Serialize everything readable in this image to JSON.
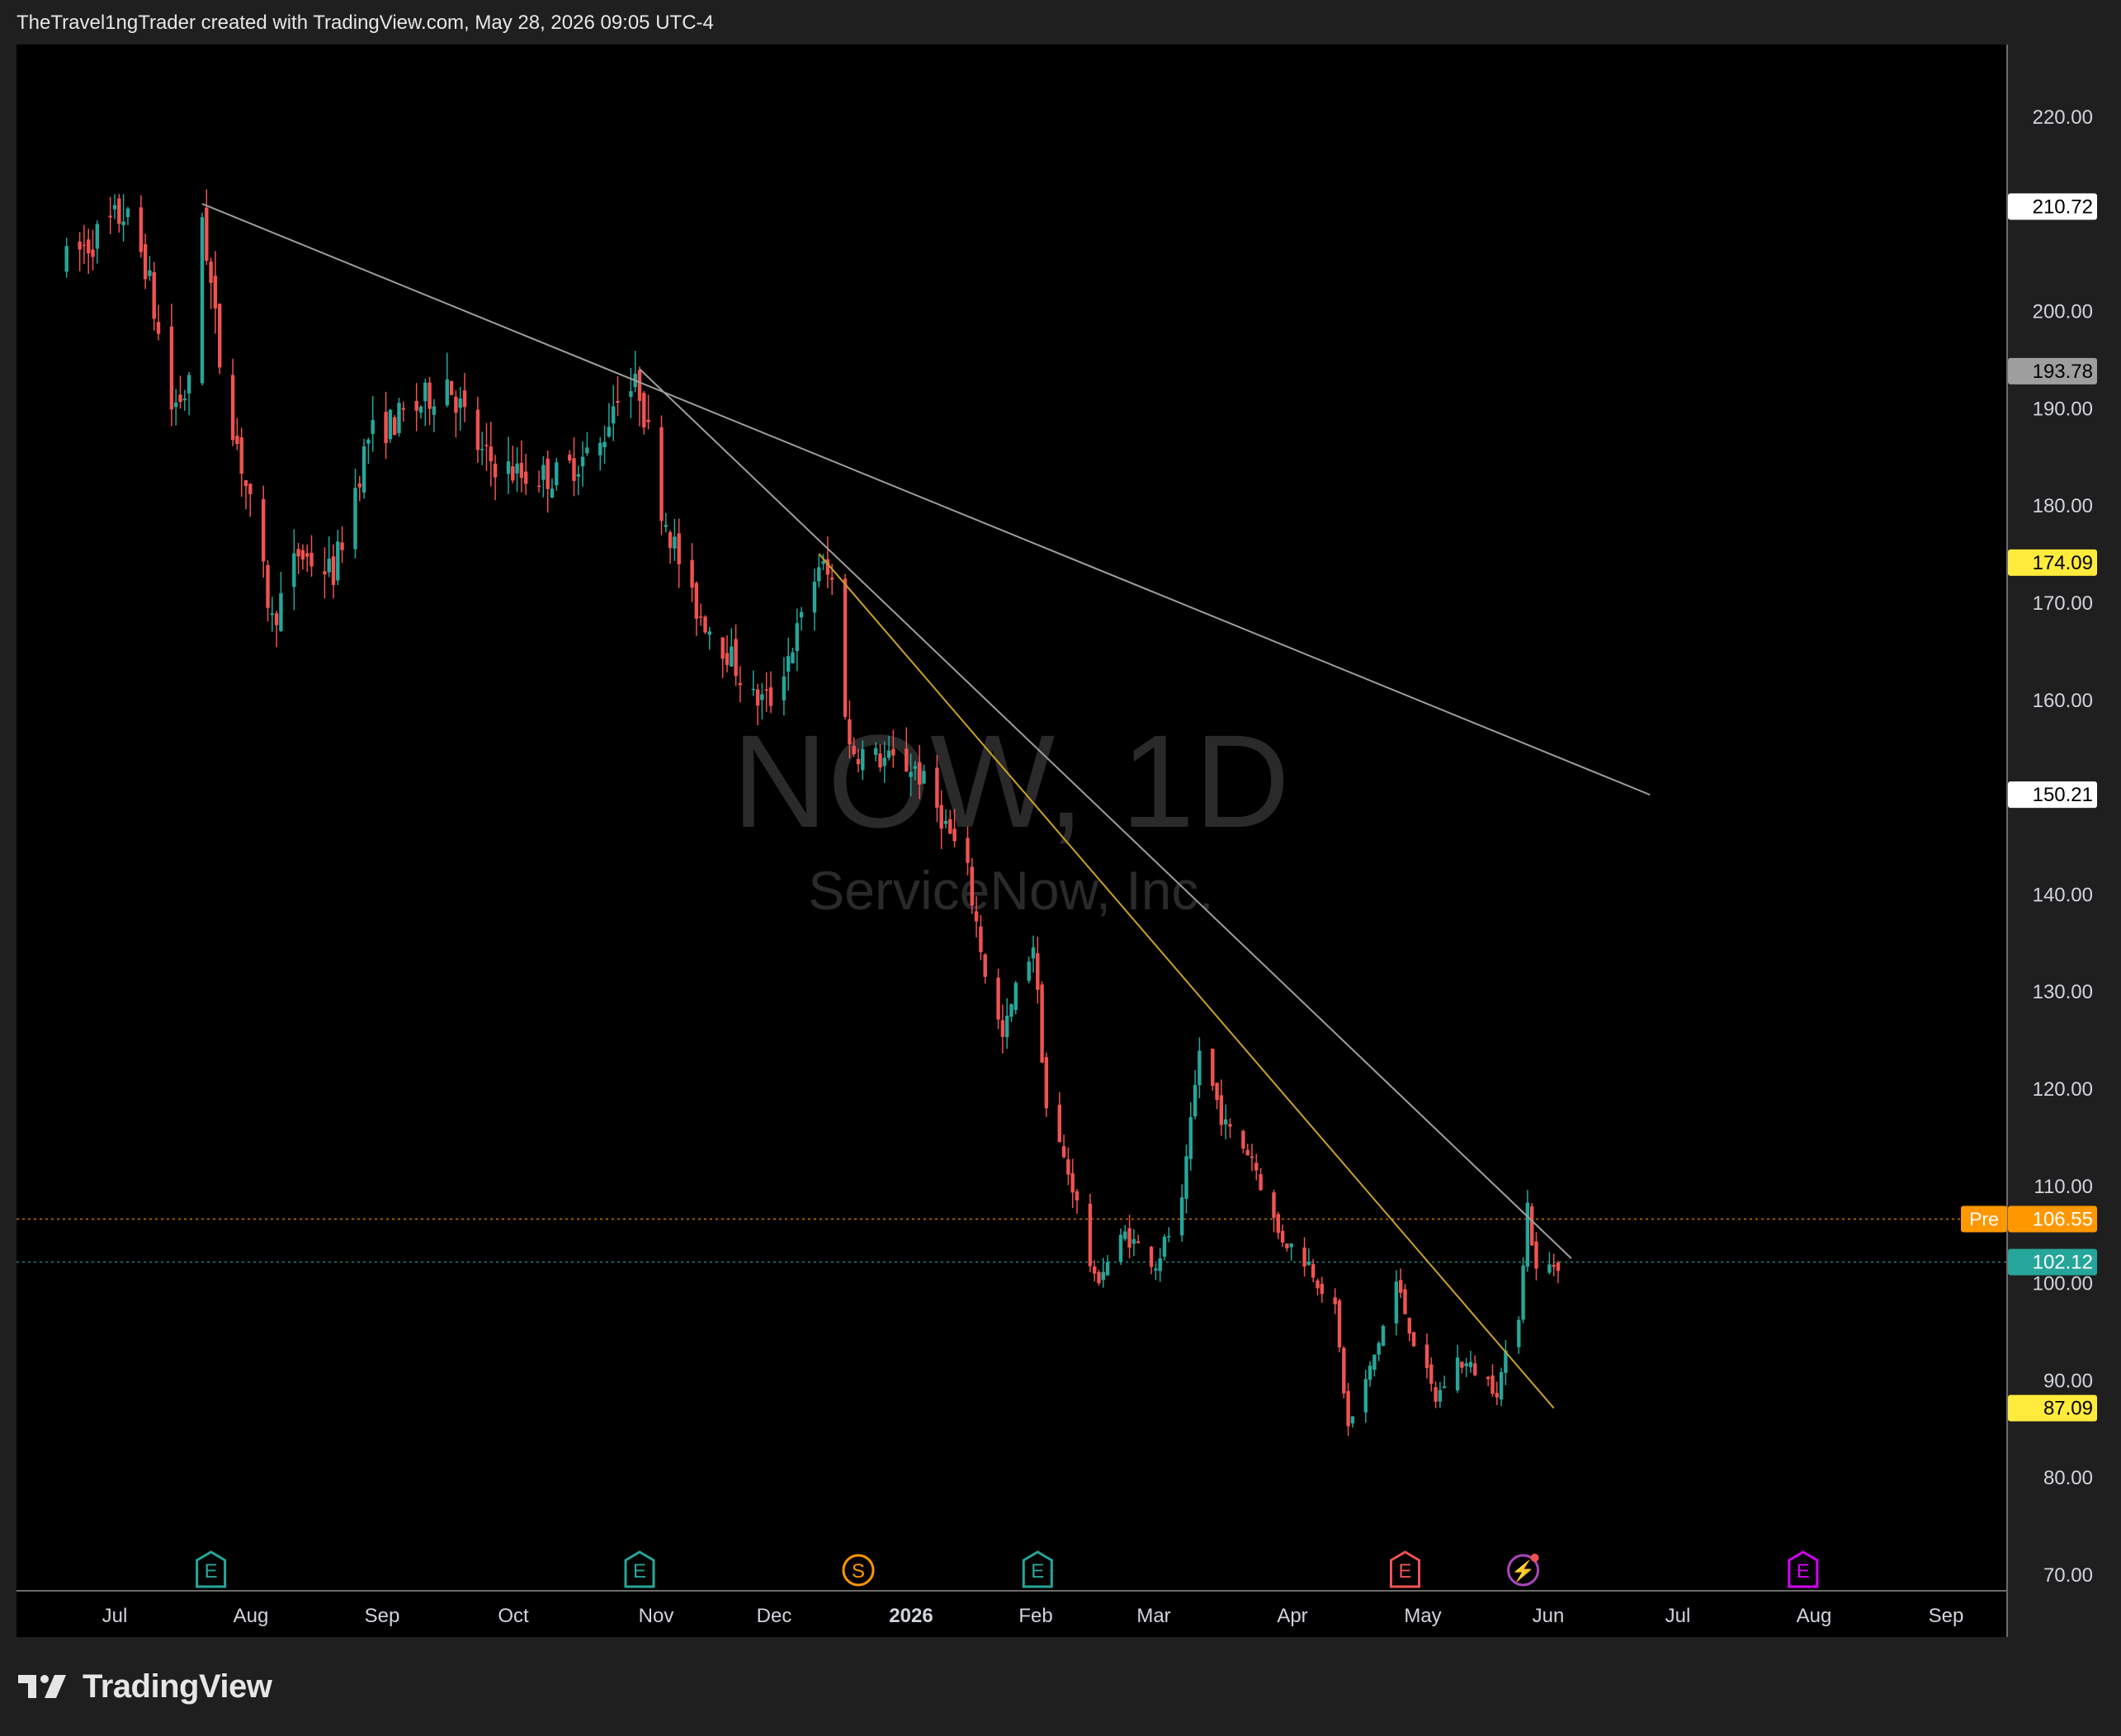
{
  "header": {
    "attribution": "TheTravel1ngTrader created with TradingView.com, May 28, 2026 09:05 UTC-4"
  },
  "watermark": {
    "symbol": "NOW, 1D",
    "company": "ServiceNow, Inc."
  },
  "footer": {
    "brand": "TradingView"
  },
  "colors": {
    "up": "#26a69a",
    "down": "#ef5350",
    "trendline": "#9e9e9e",
    "yellow_line": "#c9a227",
    "pre": "#ff9800",
    "last": "#26a69a",
    "alert": "#ffeb3b"
  },
  "chart_data": {
    "type": "candlestick",
    "interval": "1D",
    "ylim": [
      70,
      220
    ],
    "y_ticks": [
      "220.00",
      "200.00",
      "190.00",
      "180.00",
      "170.00",
      "160.00",
      "140.00",
      "130.00",
      "120.00",
      "110.00",
      "100.00",
      "90.00",
      "80.00",
      "70.00"
    ],
    "x_ticks": [
      "Jul",
      "Aug",
      "Sep",
      "Oct",
      "Nov",
      "Dec",
      "2026",
      "Feb",
      "Mar",
      "Apr",
      "May",
      "Jun",
      "Jul",
      "Aug",
      "Sep"
    ],
    "price_labels": [
      {
        "text": "210.72",
        "value": 210.72,
        "style": "white"
      },
      {
        "text": "193.78",
        "value": 193.78,
        "style": "gray"
      },
      {
        "text": "174.09",
        "value": 174.09,
        "style": "yellow"
      },
      {
        "text": "150.21",
        "value": 150.21,
        "style": "white"
      },
      {
        "text": "106.55",
        "value": 106.55,
        "style": "pre",
        "prefix": "Pre"
      },
      {
        "text": "102.12",
        "value": 102.12,
        "style": "last"
      },
      {
        "text": "87.09",
        "value": 87.09,
        "style": "yellow"
      }
    ],
    "horizontal_lines": [
      {
        "name": "premarket",
        "value": 106.55
      },
      {
        "name": "last",
        "value": 102.12
      }
    ],
    "trendlines": [
      {
        "name": "long-downtrend",
        "from": {
          "date": "2025-07-21",
          "price": 211
        },
        "to": {
          "date": "2026-06-17",
          "price": 150.2
        }
      },
      {
        "name": "mid-downtrend",
        "from": {
          "date": "2025-10-29",
          "price": 194
        },
        "to": {
          "date": "2026-05-30",
          "price": 102.5
        }
      },
      {
        "name": "steep-downtrend",
        "from": {
          "date": "2025-12-09",
          "price": 175
        },
        "to": {
          "date": "2026-05-26",
          "price": 87.1
        }
      }
    ],
    "events": [
      {
        "date": "2025-07-23",
        "type": "E",
        "label": "E"
      },
      {
        "date": "2025-10-29",
        "type": "E",
        "label": "E"
      },
      {
        "date": "2025-12-18",
        "type": "S",
        "label": "S"
      },
      {
        "date": "2026-01-28",
        "type": "E",
        "label": "E"
      },
      {
        "date": "2026-04-22",
        "type": "E-red",
        "label": "E"
      },
      {
        "date": "2026-05-19",
        "type": "flash",
        "label": "⚡"
      },
      {
        "date": "2026-07-22",
        "type": "E-future",
        "label": "E"
      }
    ],
    "anchors": [
      [
        "2025-06-20",
        205
      ],
      [
        "2025-07-03",
        210
      ],
      [
        "2025-07-08",
        205
      ],
      [
        "2025-07-14",
        190
      ],
      [
        "2025-07-18",
        192
      ],
      [
        "2025-07-21",
        210
      ],
      [
        "2025-07-25",
        195
      ],
      [
        "2025-07-31",
        182
      ],
      [
        "2025-08-06",
        168
      ],
      [
        "2025-08-12",
        175
      ],
      [
        "2025-08-20",
        173
      ],
      [
        "2025-08-28",
        187
      ],
      [
        "2025-09-08",
        190
      ],
      [
        "2025-09-15",
        193
      ],
      [
        "2025-09-23",
        185
      ],
      [
        "2025-10-02",
        183
      ],
      [
        "2025-10-10",
        183
      ],
      [
        "2025-10-20",
        186
      ],
      [
        "2025-10-24",
        192
      ],
      [
        "2025-10-29",
        192
      ],
      [
        "2025-11-03",
        180
      ],
      [
        "2025-11-10",
        170
      ],
      [
        "2025-11-18",
        165
      ],
      [
        "2025-11-24",
        160
      ],
      [
        "2025-11-28",
        160
      ],
      [
        "2025-12-05",
        168
      ],
      [
        "2025-12-09",
        174
      ],
      [
        "2025-12-12",
        172
      ],
      [
        "2025-12-16",
        155
      ],
      [
        "2025-12-22",
        154
      ],
      [
        "2025-12-31",
        153
      ],
      [
        "2026-01-06",
        148
      ],
      [
        "2026-01-12",
        142
      ],
      [
        "2026-01-16",
        132
      ],
      [
        "2026-01-20",
        125
      ],
      [
        "2026-01-23",
        130
      ],
      [
        "2026-01-27",
        135
      ],
      [
        "2026-01-30",
        118
      ],
      [
        "2026-02-05",
        110
      ],
      [
        "2026-02-10",
        100
      ],
      [
        "2026-02-17",
        105
      ],
      [
        "2026-02-24",
        102
      ],
      [
        "2026-03-02",
        108
      ],
      [
        "2026-03-06",
        124
      ],
      [
        "2026-03-12",
        116
      ],
      [
        "2026-03-18",
        113
      ],
      [
        "2026-03-24",
        105
      ],
      [
        "2026-03-31",
        102
      ],
      [
        "2026-04-06",
        97
      ],
      [
        "2026-04-09",
        85
      ],
      [
        "2026-04-14",
        91
      ],
      [
        "2026-04-20",
        100
      ],
      [
        "2026-04-24",
        94
      ],
      [
        "2026-04-29",
        88
      ],
      [
        "2026-05-04",
        92
      ],
      [
        "2026-05-08",
        91
      ],
      [
        "2026-05-13",
        89
      ],
      [
        "2026-05-18",
        97
      ],
      [
        "2026-05-20",
        108
      ],
      [
        "2026-05-22",
        101
      ],
      [
        "2026-05-27",
        102.12
      ]
    ]
  }
}
